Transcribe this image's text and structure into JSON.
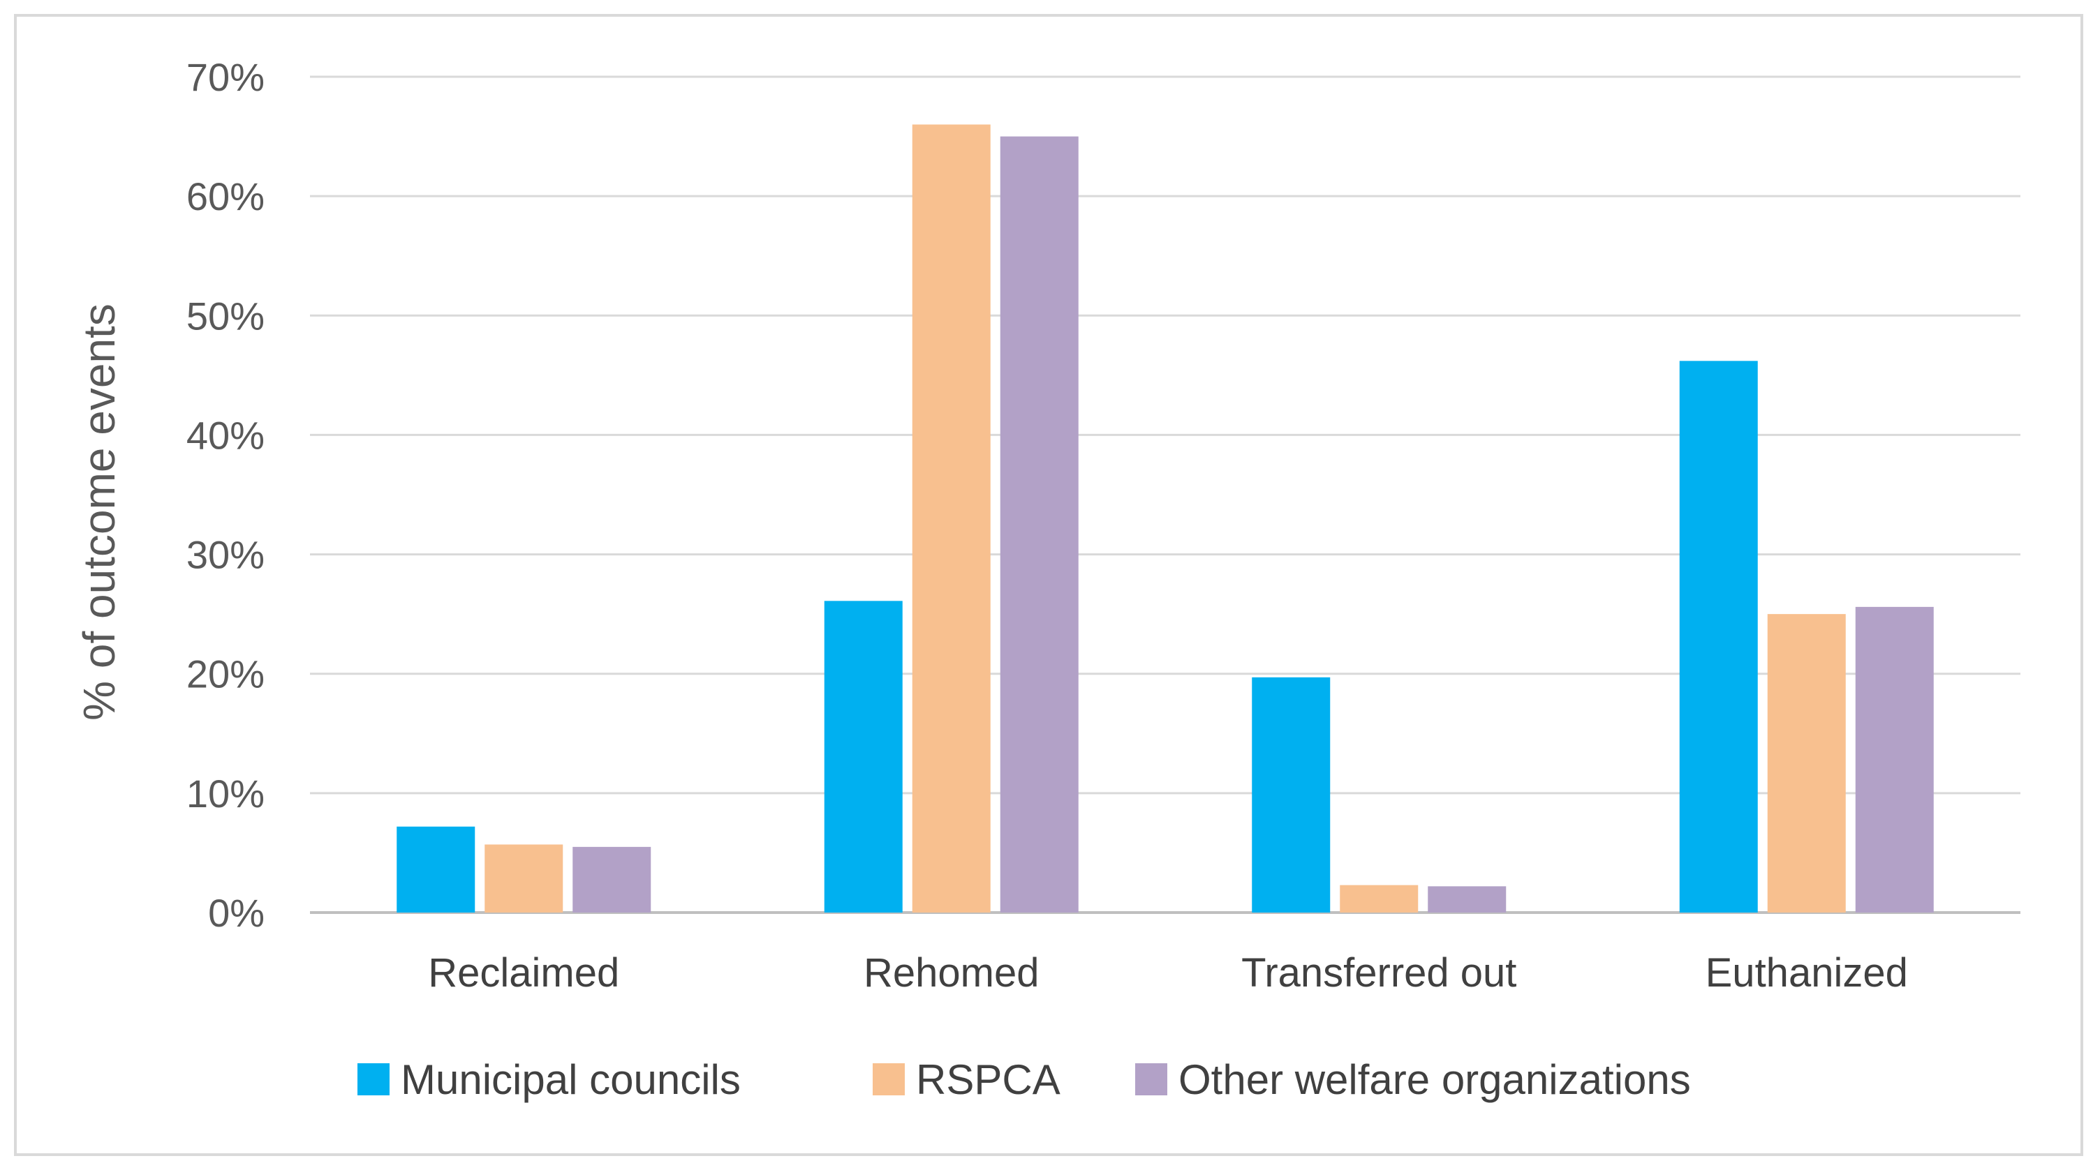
{
  "chart_data": {
    "type": "bar",
    "title": "",
    "xlabel": "",
    "ylabel": "% of outcome events",
    "ylim": [
      0,
      70
    ],
    "ytick_step": 10,
    "ytick_suffix": "%",
    "grid": true,
    "legend_position": "bottom",
    "categories": [
      "Reclaimed",
      "Rehomed",
      "Transferred out",
      "Euthanized"
    ],
    "series": [
      {
        "name": "Municipal councils",
        "color": "#00b0f0",
        "values": [
          7.2,
          26.1,
          19.7,
          46.2
        ]
      },
      {
        "name": "RSPCA",
        "color": "#f8c08f",
        "values": [
          5.7,
          66.0,
          2.3,
          25.0
        ]
      },
      {
        "name": "Other welfare organizations",
        "color": "#b2a1c7",
        "values": [
          5.5,
          65.0,
          2.2,
          25.6
        ]
      }
    ]
  }
}
